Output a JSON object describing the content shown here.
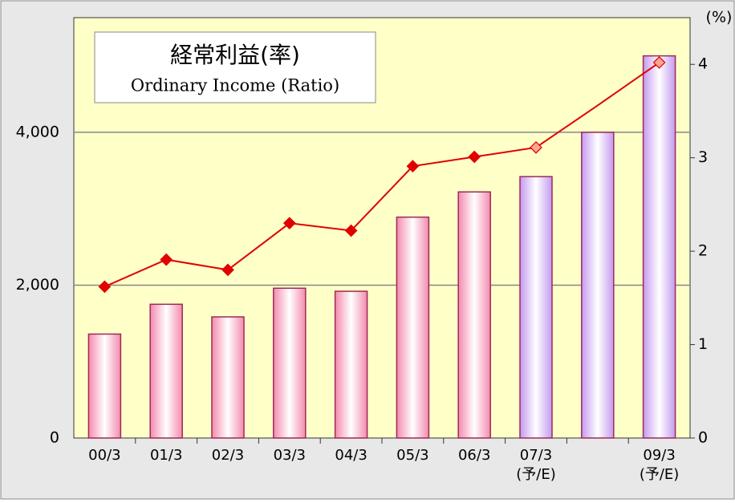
{
  "chart_data": {
    "type": "bar_line",
    "title": "経常利益(率)",
    "subtitle": "Ordinary Income (Ratio)",
    "y2_unit": "(%)",
    "categories": [
      "00/3",
      "01/3",
      "02/3",
      "03/3",
      "04/3",
      "05/3",
      "06/3",
      "07/3\n(予/E)",
      null,
      "09/3\n(予/E)"
    ],
    "series": [
      {
        "type": "bar",
        "colors": [
          "#f48aae",
          "#f48aae",
          "#f48aae",
          "#f48aae",
          "#f48aae",
          "#f48aae",
          "#f48aae",
          "#c49af0",
          "#c49af0",
          "#c49af0"
        ],
        "border": "#9c2a5a",
        "values": [
          1360,
          1750,
          1585,
          1960,
          1920,
          2890,
          3220,
          3420,
          4000,
          5000
        ]
      },
      {
        "type": "line",
        "axis": "y2",
        "color": "#e00000",
        "marker_colors": [
          "#e00000",
          "#e00000",
          "#e00000",
          "#e00000",
          "#e00000",
          "#e00000",
          "#e00000",
          "#f8a890",
          null,
          "#f8a890"
        ],
        "values": [
          1.62,
          1.91,
          1.8,
          2.3,
          2.22,
          2.91,
          3.01,
          3.11,
          3.56,
          4.02
        ]
      }
    ],
    "ylim": [
      0,
      5500
    ],
    "yticks": [
      0,
      {
        "value": 2000,
        "label": "2,000"
      },
      {
        "value": 4000,
        "label": "4,000"
      }
    ],
    "y2lim": [
      0,
      4.5
    ],
    "y2ticks": [
      0,
      1,
      2,
      3,
      4
    ],
    "grid": true
  }
}
